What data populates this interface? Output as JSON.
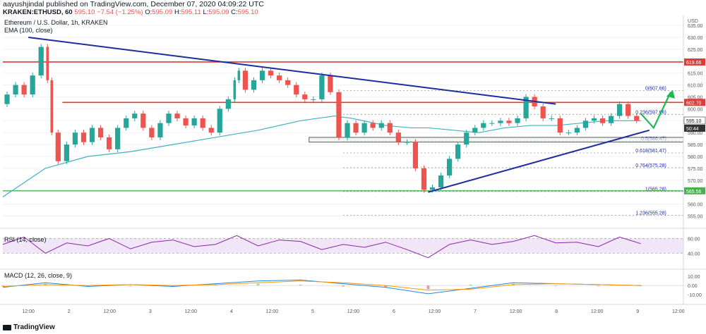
{
  "header": {
    "publish_line": "aayushjindal published on TradingView.com, December 07, 2020 04:09:22 UTC",
    "symbol": "KRAKEN:ETHUSD, 60",
    "last": "595.10",
    "change": "−7.54 (−1.25%)",
    "o_label": "O:",
    "o": "595.09",
    "h_label": "H:",
    "h": "595.11",
    "l_label": "L:",
    "l": "595.09",
    "c_label": "C:",
    "c": "595.10"
  },
  "legend": {
    "title": "Ethereum / U.S. Dollar, 1h, KRAKEN",
    "ema": "EMA (100, close)",
    "rsi": "RSI (14, close)",
    "macd": "MACD (12, 26, close, 9)"
  },
  "footer": {
    "brand": "TradingView"
  },
  "colors": {
    "up": "#26a69a",
    "down": "#ef5350",
    "ema": "#3bb3c3",
    "trendline": "#1c2d9e",
    "resistance": "#e53935",
    "support": "#4caf50",
    "rsi_line": "#8e24aa",
    "rsi_band": "#f0e6f7",
    "arrow": "#1db954"
  },
  "chart_data": [
    {
      "type": "line",
      "title": "Ethereum / U.S. Dollar, 1h, KRAKEN",
      "currency": "USD",
      "x_ticks": [
        "12:00",
        "2",
        "12:00",
        "3",
        "12:00",
        "4",
        "12:00",
        "5",
        "12:00",
        "6",
        "12:00",
        "7",
        "12:00",
        "8",
        "12:00",
        "9",
        "12:00"
      ],
      "y_ticks": [
        555,
        560,
        565,
        570,
        575,
        580,
        585,
        590,
        595,
        600,
        605,
        610,
        615,
        620,
        625,
        630,
        635
      ],
      "ylim": [
        551,
        638
      ],
      "price_path_x": [
        0,
        2,
        4,
        6,
        8,
        10,
        11,
        12,
        14,
        16,
        18,
        20,
        22,
        24,
        26,
        28,
        30,
        32,
        34,
        36,
        38,
        40,
        42,
        44,
        46,
        48,
        50,
        52,
        54,
        55,
        56,
        58,
        60,
        62,
        64,
        66,
        68,
        70,
        72,
        74,
        76,
        78,
        80,
        82,
        84,
        86,
        88,
        90,
        92,
        94,
        96,
        98,
        100,
        102,
        104,
        106,
        108,
        110,
        112,
        114,
        116,
        118,
        120,
        122,
        124,
        126,
        128,
        130,
        132,
        134,
        136,
        138,
        140,
        142,
        144,
        146,
        148,
        150
      ],
      "price_path": [
        602,
        606,
        610,
        606,
        614,
        626,
        612,
        590,
        578,
        585,
        590,
        586,
        592,
        588,
        583,
        592,
        596,
        598,
        592,
        588,
        594,
        598,
        596,
        593,
        596,
        592,
        590,
        600,
        604,
        612,
        616,
        608,
        612,
        616,
        614,
        612,
        610,
        606,
        604,
        604,
        614,
        607,
        588,
        594,
        590,
        594,
        592,
        594,
        590,
        586,
        586,
        575,
        566,
        567,
        572,
        579,
        585,
        590,
        592,
        594,
        594,
        595,
        594,
        596,
        605,
        601,
        596,
        596,
        590,
        590,
        592,
        595,
        596,
        594,
        597,
        602,
        597,
        595.1
      ],
      "ema100_x": [
        0,
        10,
        20,
        30,
        40,
        50,
        60,
        70,
        78,
        82,
        90,
        96,
        100,
        106,
        112,
        118,
        124,
        130,
        136,
        142,
        150
      ],
      "ema100": [
        563,
        575,
        580,
        582,
        585,
        588,
        591,
        595,
        597,
        596,
        593,
        592,
        592,
        591,
        590,
        592,
        593,
        593,
        594,
        595,
        595
      ],
      "resistance_levels": [
        {
          "label": "619.66",
          "value": 619.66
        },
        {
          "label": "602.70",
          "value": 602.7
        }
      ],
      "support_level": {
        "label": "565.56",
        "value": 565.56
      },
      "current_price": {
        "label": "595.10",
        "value": 595.1
      },
      "countdown": {
        "label": "50:44"
      },
      "fibonacci": [
        {
          "label": "0(607.66)",
          "value": 607.66
        },
        {
          "label": "0.236(597.66)",
          "value": 597.66
        },
        {
          "label": "0.5(586.47)",
          "value": 586.47
        },
        {
          "label": "0.618(581.47)",
          "value": 581.47
        },
        {
          "label": "0.764(575.28)",
          "value": 575.28
        },
        {
          "label": "1(565.28)",
          "value": 565.28
        },
        {
          "label": "1.236(555.28)",
          "value": 555.28
        }
      ],
      "trendline_upper": [
        [
          6,
          630
        ],
        [
          130,
          602
        ]
      ],
      "trendline_lower": [
        [
          100,
          565
        ],
        [
          152,
          591
        ]
      ],
      "support_box": {
        "x": [
          72,
          160
        ],
        "y": [
          586,
          588
        ]
      },
      "forecast_arrow": [
        [
          150,
          598
        ],
        [
          153,
          592
        ],
        [
          157,
          607
        ]
      ]
    },
    {
      "type": "line",
      "title": "RSI (14, close)",
      "y_ticks": [
        40,
        60
      ],
      "ylim": [
        28,
        70
      ],
      "band": [
        40,
        60
      ],
      "x": [
        0,
        5,
        10,
        15,
        20,
        25,
        30,
        35,
        40,
        45,
        50,
        55,
        60,
        65,
        70,
        75,
        80,
        85,
        90,
        95,
        100,
        105,
        110,
        115,
        120,
        125,
        130,
        135,
        140,
        145,
        150
      ],
      "values": [
        52,
        62,
        40,
        54,
        50,
        60,
        46,
        55,
        58,
        49,
        52,
        64,
        50,
        58,
        56,
        45,
        52,
        48,
        55,
        45,
        34,
        52,
        58,
        52,
        56,
        64,
        54,
        55,
        49,
        62,
        53
      ]
    },
    {
      "type": "bar",
      "title": "MACD (12, 26, close, 9)",
      "y_ticks": [
        10,
        0,
        -10
      ],
      "ylim": [
        -16,
        14
      ],
      "x": [
        0,
        10,
        20,
        30,
        40,
        50,
        60,
        70,
        80,
        90,
        100,
        110,
        120,
        130,
        140,
        150
      ],
      "macd": [
        -2,
        3,
        -1,
        1,
        -1,
        2,
        5,
        6,
        2,
        -2,
        -9,
        -3,
        3,
        2,
        1,
        0
      ],
      "signal": [
        -1,
        1,
        0,
        1,
        0,
        1,
        3,
        5,
        3,
        0,
        -5,
        -4,
        1,
        2,
        1,
        0
      ],
      "histogram": [
        -1,
        2,
        -1,
        0,
        -1,
        1,
        2,
        1,
        -1,
        -2,
        -4,
        1,
        2,
        0,
        0,
        0
      ]
    }
  ]
}
